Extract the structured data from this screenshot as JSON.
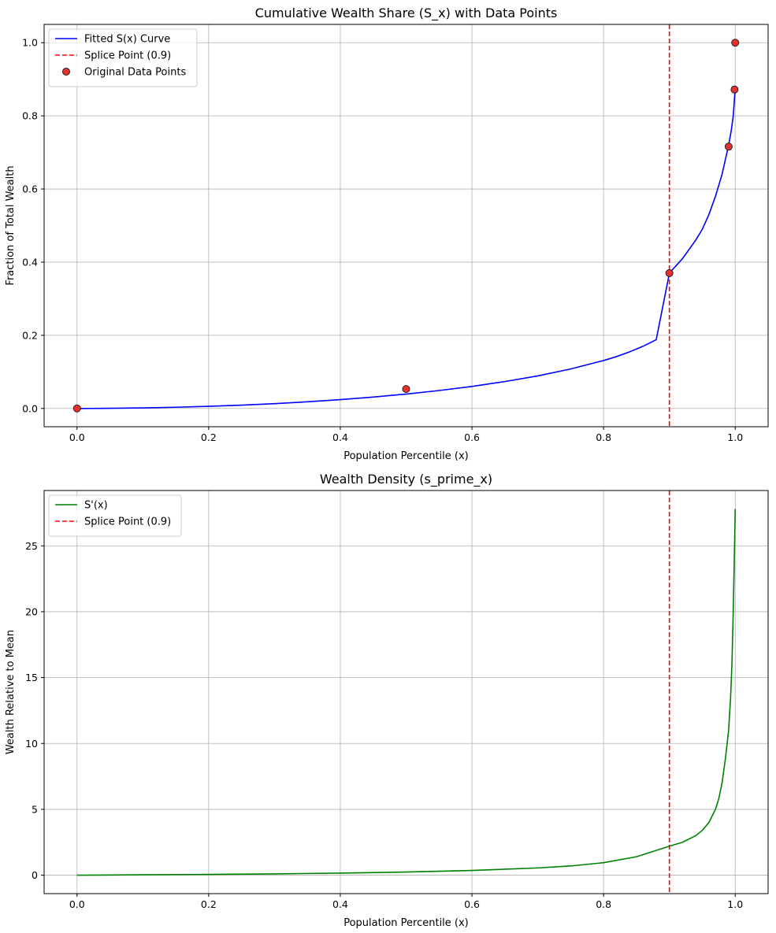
{
  "chart_data": [
    {
      "type": "line",
      "title": "Cumulative Wealth Share (S_x) with Data Points",
      "xlabel": "Population Percentile (x)",
      "ylabel": "Fraction of Total Wealth",
      "xlim": [
        -0.05,
        1.05
      ],
      "ylim": [
        -0.05,
        1.05
      ],
      "xticks": [
        "0.0",
        "0.2",
        "0.4",
        "0.6",
        "0.8",
        "1.0"
      ],
      "yticks": [
        "0.0",
        "0.2",
        "0.4",
        "0.6",
        "0.8",
        "1.0"
      ],
      "grid": true,
      "legend_position": "upper left",
      "legend": [
        "Fitted S(x) Curve",
        "Splice Point (0.9)",
        "Original Data Points"
      ],
      "series": [
        {
          "name": "Fitted S(x) Curve",
          "kind": "line",
          "color": "#0000ff",
          "points": [
            [
              0.0,
              0.0
            ],
            [
              0.05,
              0.0004
            ],
            [
              0.1,
              0.0015
            ],
            [
              0.15,
              0.0033
            ],
            [
              0.2,
              0.0058
            ],
            [
              0.25,
              0.0091
            ],
            [
              0.3,
              0.0132
            ],
            [
              0.35,
              0.0182
            ],
            [
              0.4,
              0.0242
            ],
            [
              0.45,
              0.0312
            ],
            [
              0.5,
              0.0393
            ],
            [
              0.55,
              0.049
            ],
            [
              0.6,
              0.0602
            ],
            [
              0.65,
              0.0735
            ],
            [
              0.7,
              0.089
            ],
            [
              0.75,
              0.108
            ],
            [
              0.8,
              0.131
            ],
            [
              0.82,
              0.142
            ],
            [
              0.84,
              0.155
            ],
            [
              0.86,
              0.17
            ],
            [
              0.88,
              0.188
            ],
            [
              0.9,
              0.37
            ],
            [
              0.92,
              0.41
            ],
            [
              0.94,
              0.46
            ],
            [
              0.95,
              0.49
            ],
            [
              0.96,
              0.53
            ],
            [
              0.97,
              0.58
            ],
            [
              0.98,
              0.64
            ],
            [
              0.985,
              0.68
            ],
            [
              0.99,
              0.72
            ],
            [
              0.994,
              0.76
            ],
            [
              0.997,
              0.8
            ],
            [
              0.999,
              0.85
            ],
            [
              1.0,
              0.873
            ]
          ]
        },
        {
          "name": "Splice Point (0.9)",
          "kind": "vline",
          "color": "#ff0000",
          "x": 0.9
        },
        {
          "name": "Original Data Points",
          "kind": "scatter",
          "color": "#e8302f",
          "points": [
            [
              0.0,
              0.0
            ],
            [
              0.5,
              0.053
            ],
            [
              0.9,
              0.37
            ],
            [
              0.99,
              0.716
            ],
            [
              0.999,
              0.872
            ],
            [
              1.0,
              1.0
            ]
          ]
        }
      ]
    },
    {
      "type": "line",
      "title": "Wealth Density (s_prime_x)",
      "xlabel": "Population Percentile (x)",
      "ylabel": "Wealth Relative to Mean",
      "xlim": [
        -0.05,
        1.05
      ],
      "ylim": [
        -1.4,
        29.2
      ],
      "xticks": [
        "0.0",
        "0.2",
        "0.4",
        "0.6",
        "0.8",
        "1.0"
      ],
      "yticks": [
        "0",
        "5",
        "10",
        "15",
        "20",
        "25"
      ],
      "grid": true,
      "legend_position": "upper left",
      "legend": [
        "S'(x)",
        "Splice Point (0.9)"
      ],
      "series": [
        {
          "name": "S'(x)",
          "kind": "line",
          "color": "#008000",
          "points": [
            [
              0.0,
              0.0
            ],
            [
              0.1,
              0.03
            ],
            [
              0.2,
              0.06
            ],
            [
              0.3,
              0.1
            ],
            [
              0.4,
              0.16
            ],
            [
              0.5,
              0.24
            ],
            [
              0.6,
              0.36
            ],
            [
              0.7,
              0.55
            ],
            [
              0.75,
              0.7
            ],
            [
              0.8,
              0.95
            ],
            [
              0.85,
              1.4
            ],
            [
              0.9,
              2.2
            ],
            [
              0.92,
              2.5
            ],
            [
              0.94,
              3.0
            ],
            [
              0.95,
              3.4
            ],
            [
              0.96,
              4.0
            ],
            [
              0.97,
              5.0
            ],
            [
              0.975,
              5.8
            ],
            [
              0.98,
              7.0
            ],
            [
              0.985,
              8.8
            ],
            [
              0.99,
              11.0
            ],
            [
              0.993,
              13.5
            ],
            [
              0.995,
              16.0
            ],
            [
              0.997,
              20.0
            ],
            [
              0.999,
              25.0
            ],
            [
              1.0,
              27.8
            ]
          ]
        },
        {
          "name": "Splice Point (0.9)",
          "kind": "vline",
          "color": "#ff0000",
          "x": 0.9
        }
      ]
    }
  ]
}
